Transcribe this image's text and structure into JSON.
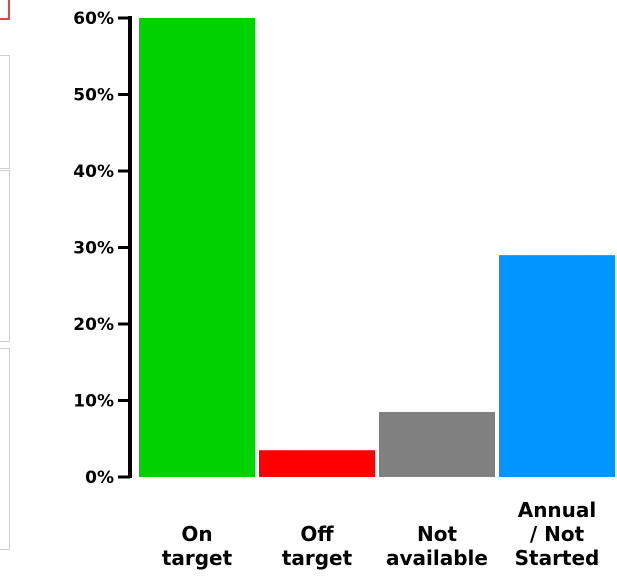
{
  "chart_data": {
    "type": "bar",
    "categories": [
      [
        "On",
        "target"
      ],
      [
        "Off",
        "target"
      ],
      [
        "Not",
        "available"
      ],
      [
        "Annual",
        "/ Not",
        "Started"
      ]
    ],
    "values": [
      60,
      3.5,
      8.5,
      29
    ],
    "colors": [
      "#00d100",
      "#ff0000",
      "#808080",
      "#0095ff"
    ],
    "yticks": [
      "0%",
      "10%",
      "20%",
      "30%",
      "40%",
      "50%",
      "60%"
    ],
    "ylim": [
      0,
      60
    ],
    "title": "",
    "xlabel": "",
    "ylabel": "",
    "grid": false
  }
}
